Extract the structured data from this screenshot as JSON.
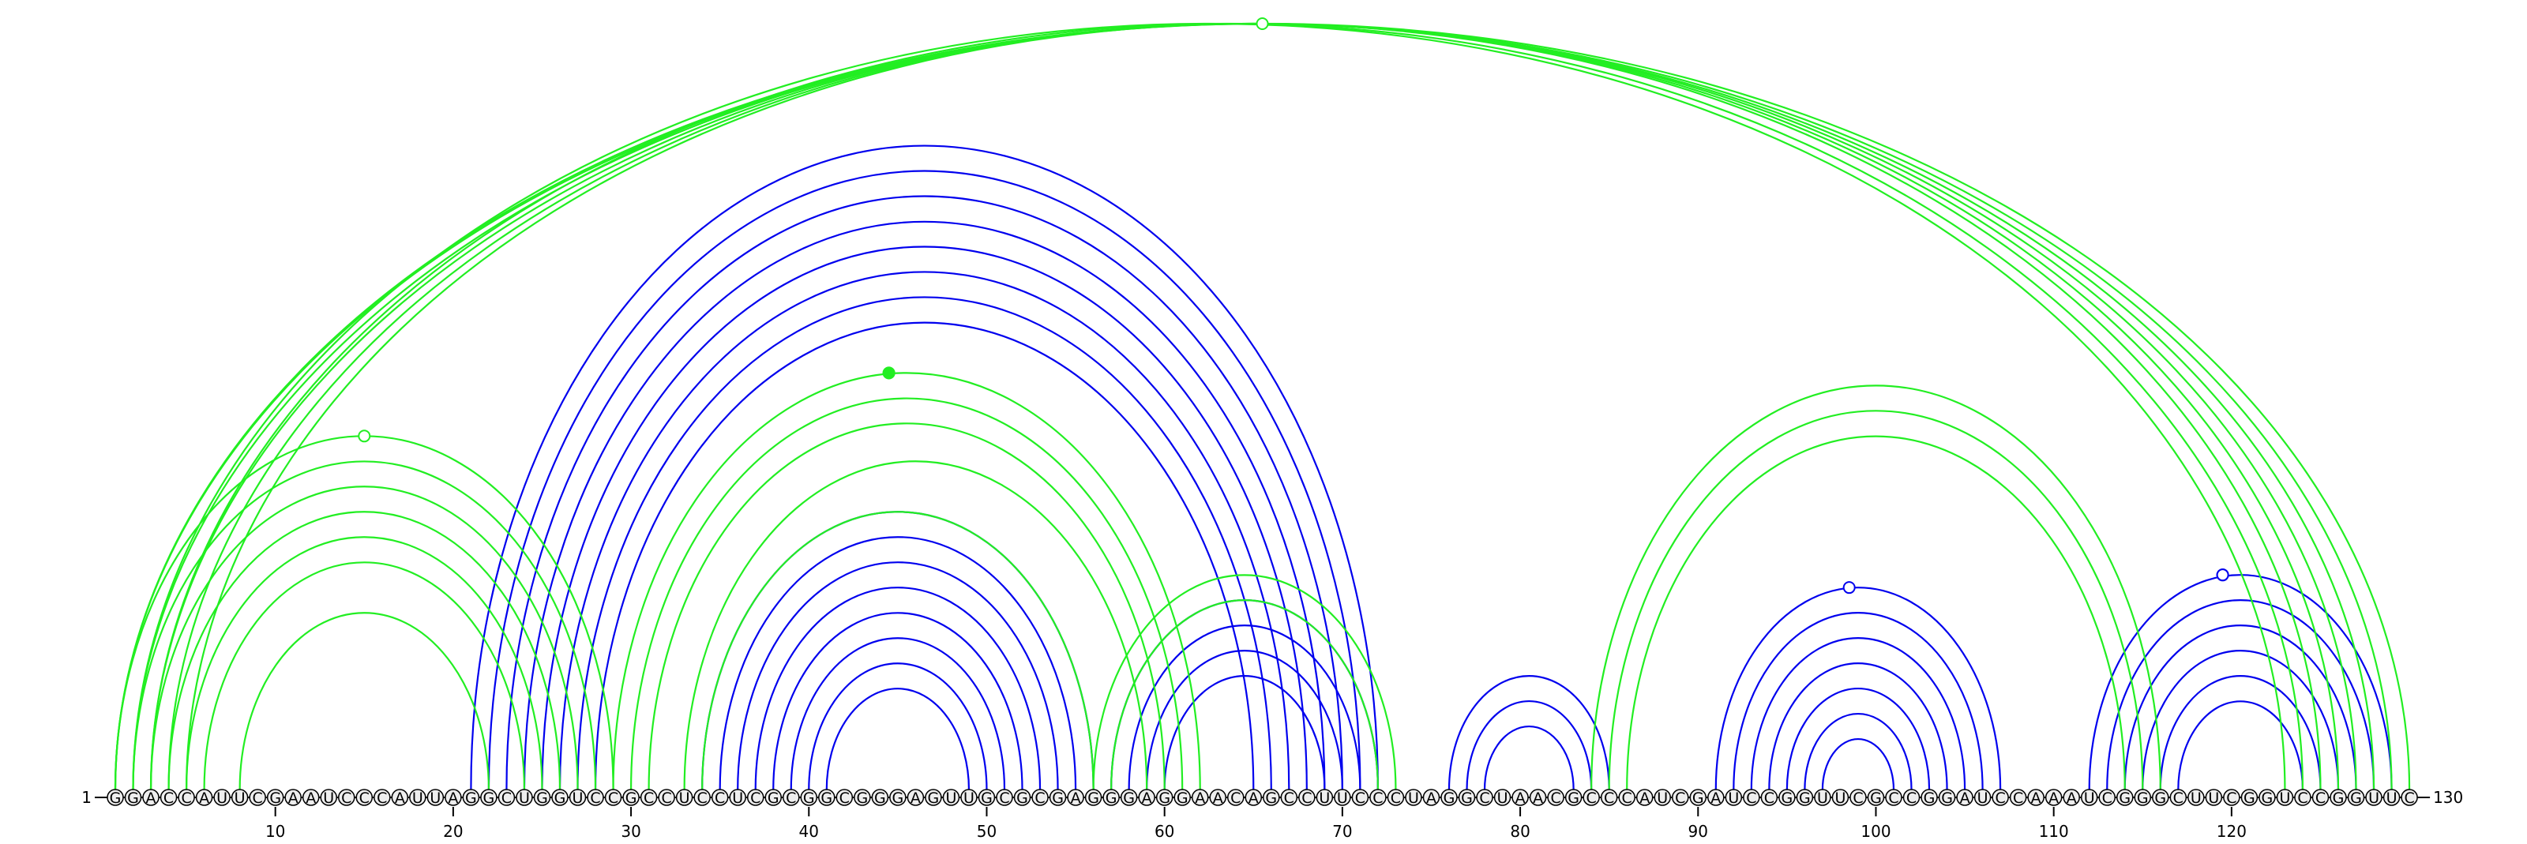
{
  "diagram": {
    "type": "rna-arc-diagram",
    "sequence": "GGACCAUUCGAAUCCCAUUAGGCUGGUCCGCCUCCUCGCGGCGGGAGUUGCGCGAGGGAGGAACAGCCUUCCCUAGGCUAACGCCCAUCGAUCCGGUUCGCCGGAUCCAAAUCGGGCUUCGGUCCGGUUC",
    "start_label": "1",
    "end_label": "130",
    "tick_labels": [
      "10",
      "20",
      "30",
      "40",
      "50",
      "60",
      "70",
      "80",
      "90",
      "100",
      "110",
      "120"
    ],
    "tick_positions": [
      10,
      20,
      30,
      40,
      50,
      60,
      70,
      80,
      90,
      100,
      110,
      120
    ],
    "colors": {
      "blue": "#0000ee",
      "green": "#22ee22",
      "backbone": "#000000",
      "nucleotide_fill": "#eeeeee"
    },
    "structures": [
      {
        "color": "#0000ee",
        "pairs": [
          [
            21,
            72
          ],
          [
            22,
            71
          ],
          [
            23,
            70
          ],
          [
            24,
            69
          ],
          [
            25,
            68
          ],
          [
            26,
            67
          ],
          [
            27,
            66
          ],
          [
            28,
            65
          ],
          [
            34,
            56
          ],
          [
            35,
            55
          ],
          [
            36,
            54
          ],
          [
            37,
            53
          ],
          [
            38,
            52
          ],
          [
            39,
            51
          ],
          [
            40,
            50
          ],
          [
            41,
            49
          ],
          [
            57,
            72
          ],
          [
            58,
            71
          ],
          [
            59,
            70
          ],
          [
            60,
            69
          ],
          [
            76,
            85
          ],
          [
            77,
            84
          ],
          [
            78,
            83
          ],
          [
            91,
            107
          ],
          [
            92,
            106
          ],
          [
            93,
            105
          ],
          [
            94,
            104
          ],
          [
            95,
            103
          ],
          [
            96,
            102
          ],
          [
            97,
            101
          ],
          [
            112,
            129
          ],
          [
            113,
            128
          ],
          [
            114,
            127
          ],
          [
            115,
            126
          ],
          [
            116,
            125
          ],
          [
            117,
            124
          ]
        ],
        "markers": [
          {
            "pos": 98.5,
            "filled": false
          },
          {
            "pos": 119.5,
            "filled": false
          },
          {
            "pos": 119.5,
            "filled": false
          },
          {
            "pos": 119.5,
            "filled": false
          }
        ]
      },
      {
        "color": "#22ee22",
        "pairs": [
          [
            1,
            129
          ],
          [
            2,
            128
          ],
          [
            3,
            127
          ],
          [
            4,
            126
          ],
          [
            5,
            125
          ],
          [
            1,
            130
          ],
          [
            2,
            123
          ],
          [
            3,
            124
          ],
          [
            1,
            29
          ],
          [
            2,
            28
          ],
          [
            3,
            27
          ],
          [
            4,
            26
          ],
          [
            5,
            25
          ],
          [
            6,
            24
          ],
          [
            8,
            22
          ],
          [
            29,
            62
          ],
          [
            30,
            61
          ],
          [
            31,
            60
          ],
          [
            33,
            59
          ],
          [
            34,
            56
          ],
          [
            56,
            73
          ],
          [
            57,
            72
          ],
          [
            84,
            116
          ],
          [
            85,
            115
          ],
          [
            86,
            114
          ]
        ],
        "markers": [
          {
            "pos": 65.5,
            "filled": false
          },
          {
            "pos": 15,
            "filled": false
          },
          {
            "pos": 44.5,
            "filled": true
          },
          {
            "pos": 44.5,
            "filled": true
          }
        ]
      }
    ]
  }
}
